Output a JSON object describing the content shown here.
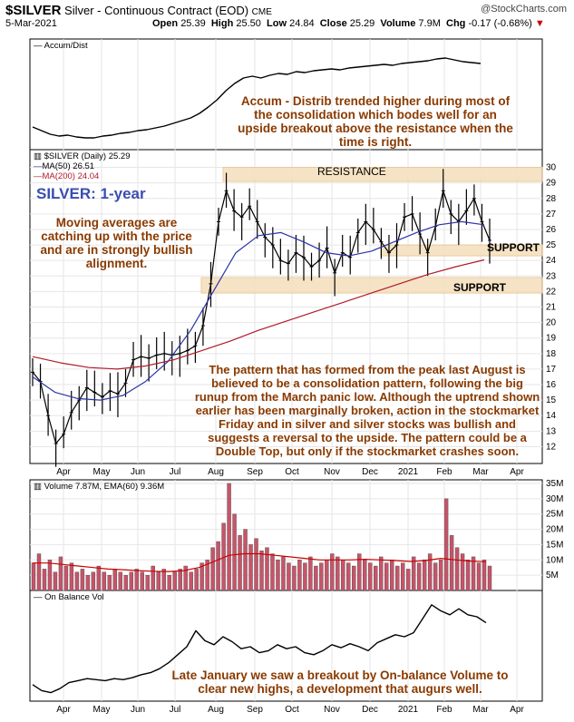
{
  "header": {
    "ticker": "$SILVER",
    "title_rest": "Silver - Continuous Contract (EOD)",
    "exchange": "CME",
    "source": "@StockCharts.com",
    "date": "5-Mar-2021",
    "open_label": "Open",
    "open": "25.39",
    "high_label": "High",
    "high": "25.50",
    "low_label": "Low",
    "low": "24.84",
    "close_label": "Close",
    "close": "25.29",
    "volume_label": "Volume",
    "volume": "7.9M",
    "chg_label": "Chg",
    "chg": "-0.17 (-0.68%)",
    "chg_arrow": "▼"
  },
  "panels": {
    "accum_label": "Accum/Dist",
    "price_label": "$SILVER (Daily) 25.29",
    "ma50_label": "MA(50) 26.51",
    "ma200_label": "MA(200) 24.04",
    "volume_label": "Volume 7.87M, EMA(60) 9.36M",
    "obv_label": "On Balance Vol",
    "big_title": "SILVER: 1-year"
  },
  "annotations": {
    "accum_note": "Accum - Distrib trended higher during most of the consolidation which bodes well for an upside breakout above the resistance when the time is right.",
    "ma_note": "Moving averages are catching up with the price and are in strongly bullish alignment.",
    "pattern_note": "The pattern that has formed from the peak last August is believed to be a consolidation pattern, following the big runup from the March panic low. Although the uptrend shown earlier has been marginally broken, action in the stockmarket Friday and in silver and silver stocks was bullish and suggests a reversal to the upside. The pattern could be a Double Top, but only if the stockmarket crashes soon.",
    "obv_note": "Late January we saw a breakout by On-balance Volume to clear new highs, a development that augurs well.",
    "resistance": "RESISTANCE",
    "support_upper": "SUPPORT",
    "support_lower": "SUPPORT"
  },
  "colors": {
    "price": "#000000",
    "ma50": "#2b34a8",
    "ma200": "#b01a2a",
    "zone_fill": "#f5dfbc",
    "zone_stroke": "#e8c48e",
    "volume_bar": "#c8546a",
    "ema_line": "#cc0000",
    "annotation": "#8a3a00",
    "title_blue": "#3a4db0"
  },
  "chart_data": [
    {
      "type": "line",
      "name": "Accum/Dist",
      "x_ticks": [
        "Apr",
        "May",
        "Jun",
        "Jul",
        "Aug",
        "Sep",
        "Oct",
        "Nov",
        "Dec",
        "2021",
        "Feb",
        "Mar",
        "Apr"
      ],
      "values_relative": [
        18,
        14,
        10,
        8,
        9,
        7,
        6,
        6,
        8,
        9,
        11,
        12,
        14,
        15,
        17,
        19,
        22,
        25,
        28,
        33,
        40,
        48,
        58,
        66,
        72,
        74,
        72,
        75,
        77,
        76,
        79,
        78,
        80,
        81,
        82,
        81,
        83,
        84,
        85,
        86,
        87,
        86,
        88,
        89,
        90,
        91,
        93,
        94,
        92,
        90,
        89,
        88
      ],
      "grid": true
    },
    {
      "type": "line",
      "title": "SILVER: 1-year",
      "x_ticks": [
        "Apr",
        "May",
        "Jun",
        "Jul",
        "Aug",
        "Sep",
        "Oct",
        "Nov",
        "Dec",
        "2021",
        "Feb",
        "Mar",
        "Apr"
      ],
      "y_ticks": [
        12,
        13,
        14,
        15,
        16,
        17,
        18,
        19,
        20,
        21,
        22,
        23,
        24,
        25,
        26,
        27,
        28,
        29,
        30
      ],
      "ylim": [
        11.5,
        30.5
      ],
      "series": [
        {
          "name": "$SILVER (Daily) 25.29",
          "values": [
            16.8,
            16.2,
            14.0,
            12.2,
            12.8,
            14.2,
            15.0,
            15.8,
            15.5,
            15.2,
            15.6,
            15.4,
            16.1,
            17.6,
            17.8,
            17.7,
            17.9,
            18.0,
            17.9,
            18.0,
            18.2,
            18.5,
            19.8,
            22.5,
            26.5,
            28.5,
            27.2,
            26.8,
            27.5,
            26.5,
            25.5,
            25.0,
            24.0,
            23.8,
            24.5,
            24.2,
            23.6,
            24.0,
            24.8,
            23.2,
            24.5,
            24.2,
            25.8,
            26.5,
            26.0,
            25.2,
            24.5,
            25.0,
            26.8,
            27.0,
            25.7,
            24.5,
            26.2,
            28.5,
            27.0,
            26.5,
            27.2,
            28.0,
            26.5,
            25.3
          ]
        },
        {
          "name": "MA(50) 26.51",
          "values": [
            16.5,
            15.5,
            15.1,
            15.0,
            15.3,
            16.2,
            17.5,
            19.5,
            22.0,
            24.5,
            25.6,
            25.8,
            25.2,
            24.5,
            24.3,
            24.6,
            25.2,
            25.8,
            26.3,
            26.5,
            26.3
          ]
        },
        {
          "name": "MA(200) 24.04",
          "values": [
            17.8,
            17.4,
            17.1,
            17.0,
            17.2,
            17.6,
            18.2,
            18.8,
            19.5,
            20.1,
            20.7,
            21.3,
            21.9,
            22.5,
            23.1,
            23.6,
            24.04
          ]
        }
      ],
      "zones": [
        {
          "label": "RESISTANCE",
          "from": 29.1,
          "to": 30.0
        },
        {
          "label": "SUPPORT",
          "from": 24.3,
          "to": 25.0
        },
        {
          "label": "SUPPORT",
          "from": 21.9,
          "to": 22.9
        }
      ]
    },
    {
      "type": "bar",
      "name": "Volume 7.87M, EMA(60) 9.36M",
      "y_ticks": [
        "5M",
        "10M",
        "15M",
        "20M",
        "25M",
        "30M",
        "35M"
      ],
      "ylim": [
        0,
        35
      ],
      "unit": "M",
      "values_sample": [
        9,
        12,
        7,
        10,
        6,
        11,
        8,
        9,
        6,
        7,
        5,
        6,
        8,
        6,
        5,
        7,
        6,
        5,
        6,
        7,
        6,
        5,
        8,
        6,
        7,
        5,
        6,
        7,
        8,
        6,
        7,
        9,
        10,
        14,
        16,
        22,
        35,
        25,
        18,
        20,
        15,
        17,
        13,
        14,
        12,
        10,
        11,
        9,
        8,
        10,
        9,
        11,
        8,
        9,
        10,
        12,
        11,
        10,
        9,
        8,
        12,
        10,
        9,
        8,
        11,
        9,
        10,
        8,
        9,
        7,
        11,
        9,
        10,
        12,
        9,
        10,
        30,
        18,
        14,
        12,
        10,
        11,
        9,
        10,
        8
      ],
      "ema_values": [
        9,
        9,
        8.5,
        8,
        7.5,
        7,
        6.8,
        6.5,
        6.3,
        6.2,
        6.5,
        7.5,
        9.5,
        11.5,
        12,
        12,
        11.5,
        11,
        10.5,
        10,
        10,
        10,
        10.2,
        10,
        9.8,
        9.5,
        9.8,
        10.5,
        10,
        9.6,
        9.4
      ]
    },
    {
      "type": "line",
      "name": "On Balance Vol",
      "x_ticks": [
        "Apr",
        "May",
        "Jun",
        "Jul",
        "Aug",
        "Sep",
        "Oct",
        "Nov",
        "Dec",
        "2021",
        "Feb",
        "Mar",
        "Apr"
      ],
      "values_relative": [
        12,
        6,
        4,
        8,
        14,
        16,
        18,
        17,
        16,
        18,
        17,
        19,
        22,
        24,
        28,
        34,
        42,
        50,
        66,
        56,
        52,
        60,
        55,
        48,
        50,
        44,
        46,
        52,
        48,
        50,
        44,
        42,
        46,
        52,
        49,
        53,
        50,
        46,
        54,
        58,
        62,
        60,
        64,
        78,
        92,
        86,
        82,
        88,
        82,
        80,
        74
      ]
    }
  ]
}
